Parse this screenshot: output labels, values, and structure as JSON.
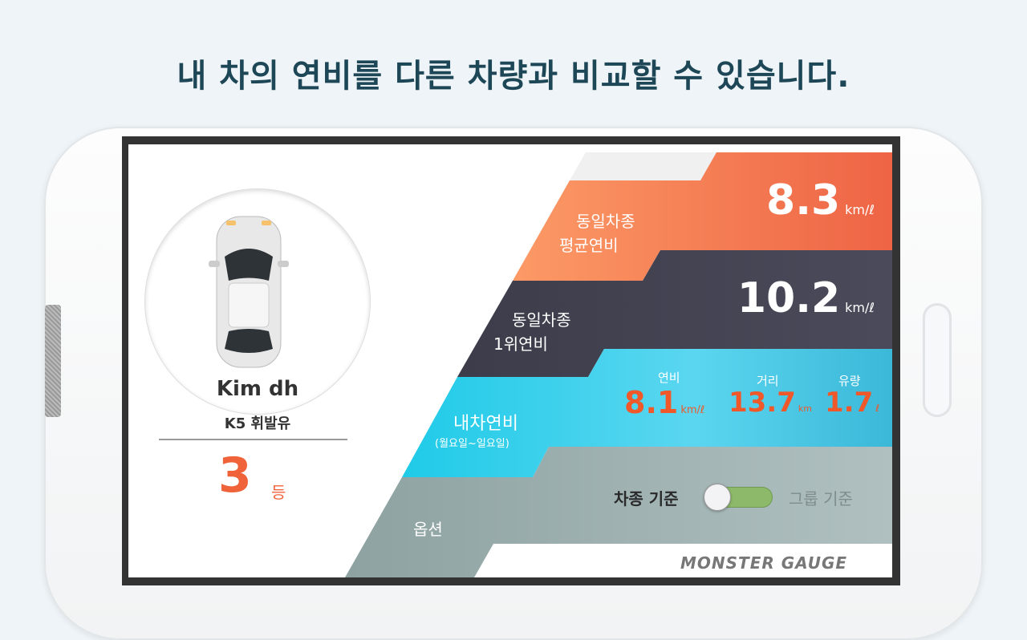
{
  "headline": "내 차의 연비를 다른 차량과 비교할 수 있습니다.",
  "profile": {
    "name": "Kim dh",
    "car": "K5 휘발유",
    "rank": "3",
    "rank_unit": "등"
  },
  "rows": {
    "avg": {
      "label_line1": "동일차종",
      "label_line2": "평균연비",
      "value": "8.3",
      "unit": "km/ℓ",
      "color": "#f47a4f"
    },
    "top": {
      "label_line1": "동일차종",
      "label_line2": "1위연비",
      "value": "10.2",
      "unit": "km/ℓ",
      "color": "#46465a"
    },
    "mine": {
      "label_line1": "내차연비",
      "label_line2": "(월요일~일요일)",
      "color": "#33c9e8",
      "stats": [
        {
          "label": "연비",
          "value": "8.1",
          "unit": "km/ℓ"
        },
        {
          "label": "거리",
          "value": "13.7",
          "unit": "km"
        },
        {
          "label": "유량",
          "value": "1.7",
          "unit": "ℓ"
        }
      ]
    },
    "options": {
      "label": "옵션",
      "color": "#9fb2b2",
      "toggle_left": "차종 기준",
      "toggle_right": "그룹 기준",
      "toggle_on": true
    }
  },
  "brand": "MONSTER GAUGE",
  "accent": "#f0582a"
}
